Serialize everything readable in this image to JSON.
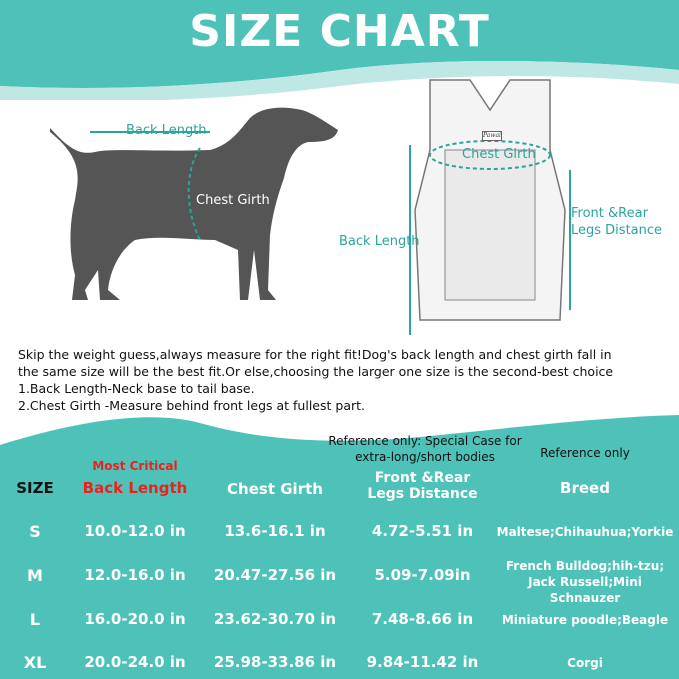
{
  "title": "SIZE CHART",
  "colors": {
    "teal": "#4ec2b9",
    "dog": "#555555",
    "red": "#e8231f"
  },
  "dog_labels": {
    "back_length": "Back Length",
    "chest_girth": "Chest Girth"
  },
  "carrier_labels": {
    "chest_girth": "Chest Girth",
    "back_length": "Back Length",
    "legs_distance_1": "Front &Rear",
    "legs_distance_2": "Legs Distance",
    "brand_tag": "Pawaii"
  },
  "description": [
    "Skip the weight guess,always measure for the right fit!Dog's back length and chest girth fall in",
    "the same size will be the best fit.Or else,choosing the larger one size is the second-best choice",
    "1.Back Length-Neck base to tail base.",
    "2.Chest Girth -Measure behind front legs at fullest part."
  ],
  "table": {
    "notes": {
      "most_critical": "Most Critical",
      "special_case_1": "Reference only: Special Case for",
      "special_case_2": "extra-long/short bodies",
      "reference_only": "Reference only"
    },
    "headers": {
      "size": "SIZE",
      "back_length": "Back Length",
      "chest_girth": "Chest Girth",
      "legs_1": "Front &Rear",
      "legs_2": "Legs Distance",
      "breed": "Breed"
    },
    "rows": [
      {
        "size": "S",
        "back": "10.0-12.0 in",
        "chest": "13.6-16.1 in",
        "legs": "4.72-5.51 in",
        "breed1": "Maltese;Chihauhua;Yorkie",
        "breed2": ""
      },
      {
        "size": "M",
        "back": "12.0-16.0 in",
        "chest": "20.47-27.56 in",
        "legs": "5.09-7.09in",
        "breed1": "French Bulldog;hih-tzu;",
        "breed2": "Jack Russell;Mini Schnauzer"
      },
      {
        "size": "L",
        "back": "16.0-20.0 in",
        "chest": "23.62-30.70 in",
        "legs": "7.48-8.66 in",
        "breed1": "Miniature poodle;Beagle",
        "breed2": ""
      },
      {
        "size": "XL",
        "back": "20.0-24.0 in",
        "chest": "25.98-33.86 in",
        "legs": "9.84-11.42 in",
        "breed1": "Corgi",
        "breed2": ""
      }
    ]
  }
}
